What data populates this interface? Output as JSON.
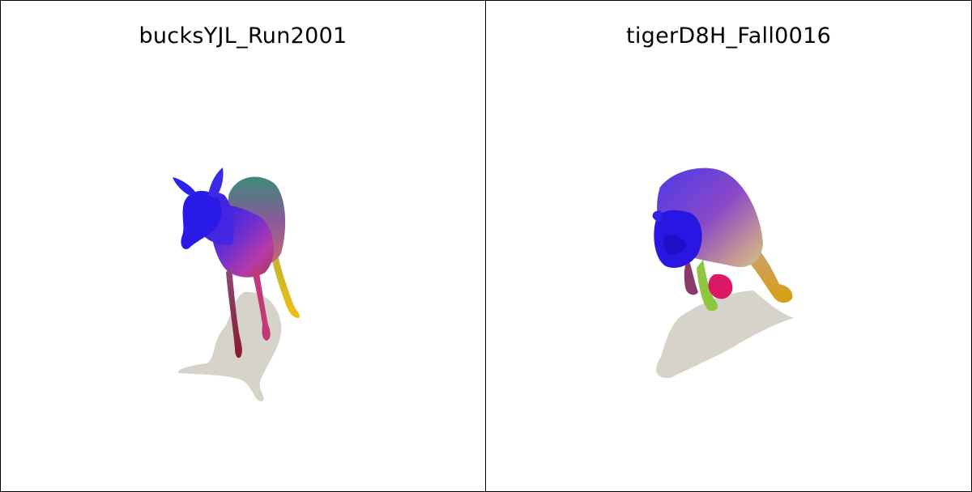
{
  "panels": [
    {
      "title": "bucksYJL_Run2001",
      "subject": "deer mesh render",
      "colors": {
        "primary": "#2e1ee6",
        "accent_magenta": "#c8279b",
        "accent_yellow": "#e6c21a",
        "shadow": "#d5d3cb"
      }
    },
    {
      "title": "tigerD8H_Fall0016",
      "subject": "tiger mesh render",
      "colors": {
        "primary": "#2a16e0",
        "accent_magenta": "#d8186a",
        "accent_yellow": "#d7a81a",
        "accent_green": "#8cc43a",
        "shadow": "#d5d3cb"
      }
    }
  ]
}
